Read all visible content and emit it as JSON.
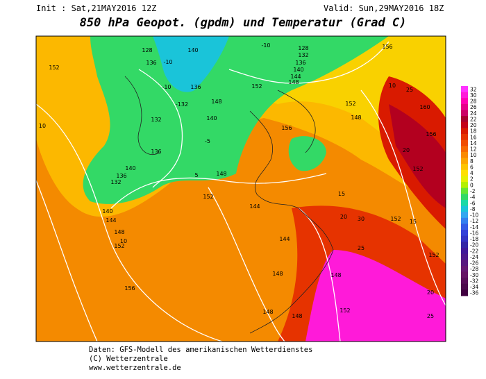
{
  "header": {
    "init": "Init : Sat,21MAY2016 12Z",
    "valid": "Valid: Sun,29MAY2016 18Z",
    "title": "850 hPa Geopot. (gpdm) und Temperatur (Grad C)"
  },
  "colorbar": {
    "labels": [
      32,
      30,
      28,
      26,
      24,
      22,
      20,
      18,
      16,
      14,
      12,
      10,
      8,
      6,
      4,
      2,
      0,
      -2,
      -4,
      -6,
      -8,
      -10,
      -12,
      -14,
      -16,
      -18,
      -20,
      -22,
      -24,
      -26,
      -28,
      -30,
      -32,
      -34,
      -36
    ],
    "colors": [
      "#ff33ff",
      "#ff1ad9",
      "#ff00b3",
      "#e6008a",
      "#cc0066",
      "#a8002e",
      "#c4001a",
      "#d91a00",
      "#e63300",
      "#f04d00",
      "#f76a00",
      "#fa8a00",
      "#fca600",
      "#fdc400",
      "#ffe000",
      "#e6f000",
      "#b3f000",
      "#66e633",
      "#33d966",
      "#1ad9a6",
      "#1ac4d9",
      "#33a6f0",
      "#3380f0",
      "#335ce6",
      "#3340d9",
      "#3333c4",
      "#3326a6",
      "#401a99",
      "#4d1a8c",
      "#591a80",
      "#661a73",
      "#661466",
      "#590f59",
      "#4d0a4d",
      "#400040"
    ]
  },
  "map": {
    "labels": [
      "152",
      "128",
      "136",
      "-10",
      "140",
      "-10",
      "128",
      "132",
      "136",
      "140",
      "144",
      "148",
      "152",
      "156",
      "-10",
      "-132",
      "136",
      "148",
      "140",
      "132",
      "136",
      "140",
      "136",
      "132",
      "140",
      "144",
      "148",
      "152",
      "156",
      "148",
      "152",
      "144",
      "144",
      "148",
      "148",
      "148",
      "148",
      "152",
      "152",
      "148",
      "156",
      "160",
      "156",
      "152",
      "152",
      "152",
      "10",
      "20",
      "20",
      "30",
      "25",
      "10",
      "10",
      "5",
      "-5",
      "15",
      "15",
      "20",
      "25",
      "25"
    ]
  },
  "footer": {
    "line1": "Daten: GFS-Modell des amerikanischen Wetterdienstes",
    "line2": "(C) Wetterzentrale",
    "line3": "www.wetterzentrale.de"
  }
}
